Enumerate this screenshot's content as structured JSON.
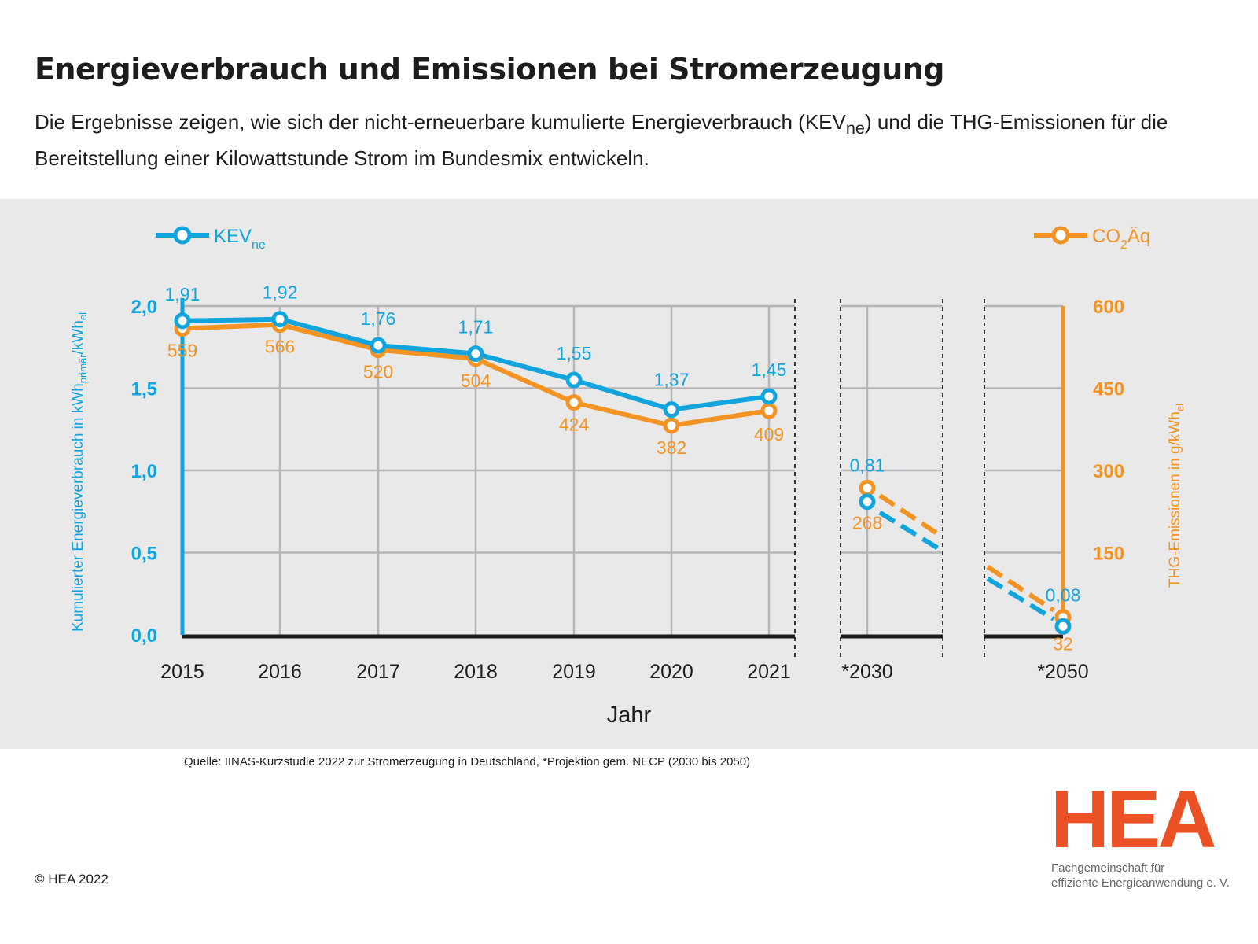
{
  "header": {
    "title": "Energieverbrauch und Emissionen bei Stromerzeugung",
    "subtitle_pre": "Die Ergebnisse zeigen, wie sich der nicht-erneuerbare kumulierte Energieverbrauch (KEV",
    "subtitle_sub": "ne",
    "subtitle_post": ") und die THG-Emissionen für die Bereitstellung einer Kilowattstunde Strom im Bundesmix entwickeln."
  },
  "chart_data": {
    "type": "line",
    "xlabel": "Jahr",
    "categories": [
      "2015",
      "2016",
      "2017",
      "2018",
      "2019",
      "2020",
      "2021",
      "*2030",
      "*2050"
    ],
    "ylabel_left": {
      "main": "Kumulierter Energieverbrauch in kWh",
      "sub1": "primär",
      "mid": "/kWh",
      "sub2": "el"
    },
    "ylabel_right": {
      "main": "THG-Emissionen in g/kWh",
      "sub": "el"
    },
    "y_left_ticks": [
      "0,0",
      "0,5",
      "1,0",
      "1,5",
      "2,0"
    ],
    "y_left_range": [
      0,
      2.0
    ],
    "y_right_ticks": [
      "150",
      "300",
      "450",
      "600"
    ],
    "y_right_range": [
      0,
      600
    ],
    "grid": true,
    "series": [
      {
        "name": "KEV",
        "name_sub": "ne",
        "axis": "left",
        "color": "#12a4dd",
        "values": [
          1.91,
          1.92,
          1.76,
          1.71,
          1.55,
          1.37,
          1.45,
          0.81,
          0.08
        ],
        "labels": [
          "1,91",
          "1,92",
          "1,76",
          "1,71",
          "1,55",
          "1,37",
          "1,45",
          "0,81",
          "0,08"
        ]
      },
      {
        "name": "CO",
        "name_sub": "2",
        "name_post": "Äq",
        "axis": "right",
        "color": "#f39323",
        "values": [
          559,
          566,
          520,
          504,
          424,
          382,
          409,
          268,
          32
        ],
        "labels": [
          "559",
          "566",
          "520",
          "504",
          "424",
          "382",
          "409",
          "268",
          "32"
        ]
      }
    ],
    "projection_style": "dashed"
  },
  "footer": {
    "source": "Quelle: IINAS-Kurzstudie 2022 zur Stromerzeugung in Deutschland, *Projektion gem. NECP (2030 bis 2050)",
    "copyright": "© HEA 2022",
    "logo_text": "HEA",
    "logo_sub_1": "Fachgemeinschaft für",
    "logo_sub_2": "effiziente Energieanwendung e. V."
  },
  "colors": {
    "blue": "#12a4dd",
    "orange": "#f39323",
    "logo": "#ea5124",
    "panel": "#e9e9e9"
  }
}
